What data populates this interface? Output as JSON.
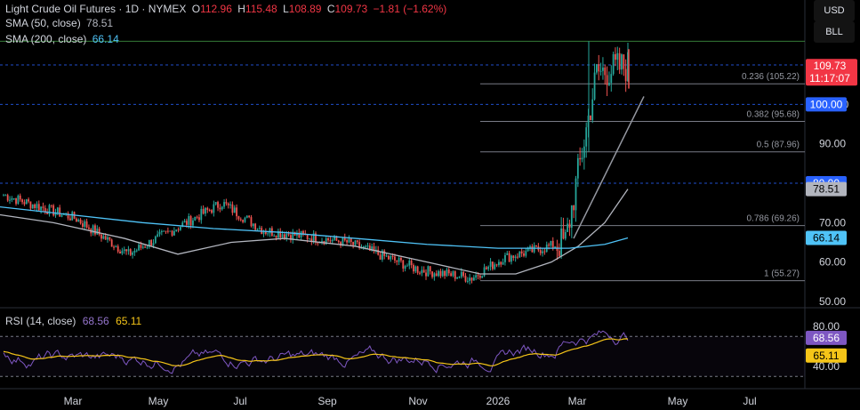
{
  "header": {
    "symbol_title": "Light Crude Oil Futures · 1D · NYMEX",
    "open_label": "O",
    "open": "112.96",
    "high_label": "H",
    "high": "115.48",
    "low_label": "L",
    "low": "108.89",
    "close_label": "C",
    "close": "109.73",
    "change": "−1.81 (−1.62%)",
    "sma50_label": "SMA (50, close)",
    "sma50_value": "78.51",
    "sma200_label": "SMA (200, close)",
    "sma200_value": "66.14"
  },
  "toolbar": {
    "currency": "USD",
    "unit": "BLL"
  },
  "price_axis": {
    "ticks": [
      "110.00",
      "100.00",
      "90.00",
      "80.00",
      "70.00",
      "60.00",
      "50.00"
    ],
    "last_price": "109.73",
    "countdown": "11:17:07",
    "badges": [
      {
        "label": "110.00",
        "value": 110,
        "style": "plain"
      },
      {
        "label": "100.00",
        "value": 100,
        "style": "blue"
      },
      {
        "label": "80.00",
        "value": 80,
        "style": "blue"
      },
      {
        "label": "78.51",
        "value": 78.51,
        "style": "grey"
      },
      {
        "label": "66.14",
        "value": 66.14,
        "style": "cyan"
      }
    ]
  },
  "fib_levels": [
    {
      "label": "0.236 (105.22)",
      "value": 105.22
    },
    {
      "label": "0.382 (95.68)",
      "value": 95.68
    },
    {
      "label": "0.5 (87.96)",
      "value": 87.96
    },
    {
      "label": "0.786 (69.26)",
      "value": 69.26
    },
    {
      "label": "1 (55.27)",
      "value": 55.27
    }
  ],
  "rsi": {
    "label": "RSI (14, close)",
    "value": "68.56",
    "ma_value": "65.11",
    "ticks": [
      "80.00",
      "40.00"
    ]
  },
  "time_axis": [
    "Mar",
    "May",
    "Jul",
    "Sep",
    "Nov",
    "2026",
    "Mar",
    "May",
    "Jul"
  ],
  "colors": {
    "up": "#26a69a",
    "down": "#ef5350",
    "sma50": "#b2b5be",
    "sma200": "#4fc3f7",
    "rsi_line": "#7e57c2",
    "rsi_ma": "#f5c518",
    "fib": "#787b86",
    "hline": "#2962ff",
    "last_price_bg": "#f23645",
    "grid": "#1e222d"
  },
  "chart_data": {
    "type": "candlestick",
    "period": "1D",
    "ylim": [
      50,
      118
    ],
    "y_scale": "linear",
    "grid": false,
    "price_path_approx": [
      {
        "x": "Jan",
        "close": 77
      },
      {
        "x": "Mar",
        "close": 71
      },
      {
        "x": "May",
        "close": 62
      },
      {
        "x": "Jun",
        "close": 75
      },
      {
        "x": "Jul",
        "close": 68
      },
      {
        "x": "Sep",
        "close": 65
      },
      {
        "x": "Nov",
        "close": 58
      },
      {
        "x": "Dec",
        "close": 56
      },
      {
        "x": "2026",
        "close": 61
      },
      {
        "x": "Feb",
        "close": 65
      },
      {
        "x": "Mar",
        "close": 108
      },
      {
        "x": "Apr",
        "close": 109.73
      }
    ],
    "series": [
      {
        "name": "SMA (50, close)",
        "last": 78.51
      },
      {
        "name": "SMA (200, close)",
        "last": 66.14
      }
    ],
    "indicator": {
      "name": "RSI (14, close)",
      "last": 68.56,
      "ma_last": 65.11,
      "levels": [
        70,
        30
      ]
    }
  }
}
